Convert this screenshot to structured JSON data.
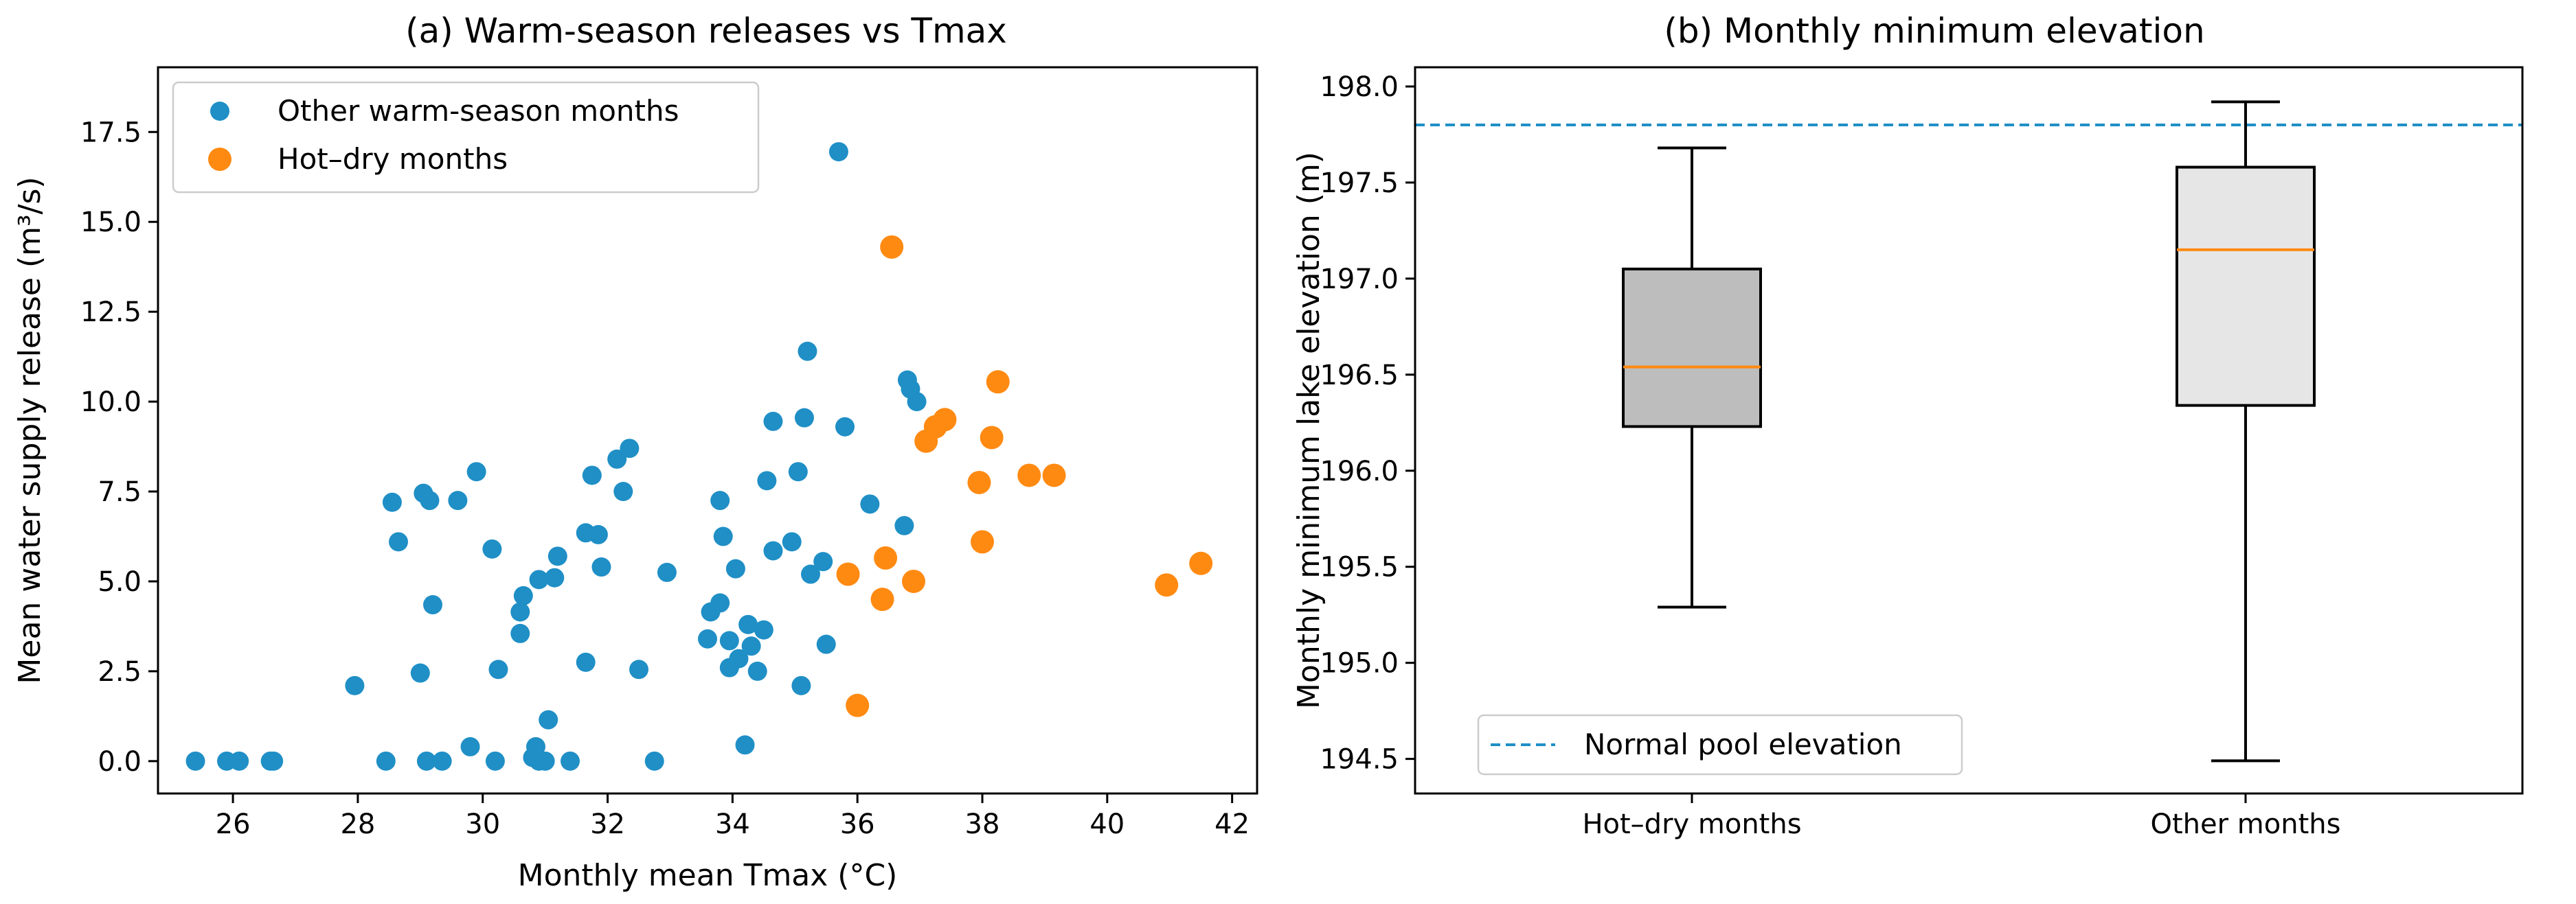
{
  "chart_data": [
    {
      "type": "scatter",
      "title": "(a) Warm-season releases vs Tmax",
      "xlabel": "Monthly mean Tmax (°C)",
      "ylabel": "Mean water supply release (m³/s)",
      "xlim": [
        24.8,
        42.4
      ],
      "ylim": [
        -0.9,
        19.3
      ],
      "xticks": [
        26,
        28,
        30,
        32,
        34,
        36,
        38,
        40,
        42
      ],
      "xtick_labels": [
        "26",
        "28",
        "30",
        "32",
        "34",
        "36",
        "38",
        "40",
        "42"
      ],
      "yticks": [
        0,
        2.5,
        5,
        7.5,
        10,
        12.5,
        15,
        17.5
      ],
      "ytick_labels": [
        "0.0",
        "2.5",
        "5.0",
        "7.5",
        "10.0",
        "12.5",
        "15.0",
        "17.5"
      ],
      "grid": false,
      "legend_position": "top-left",
      "series": [
        {
          "name": "Other warm-season months",
          "color": "#1f8fc6",
          "points": [
            [
              25.4,
              0
            ],
            [
              25.9,
              0
            ],
            [
              26.1,
              0
            ],
            [
              26.6,
              0
            ],
            [
              26.65,
              0
            ],
            [
              27.95,
              2.1
            ],
            [
              28.45,
              0
            ],
            [
              28.55,
              7.2
            ],
            [
              28.65,
              6.1
            ],
            [
              29.0,
              2.45
            ],
            [
              29.05,
              7.45
            ],
            [
              29.1,
              0
            ],
            [
              29.15,
              7.25
            ],
            [
              29.2,
              4.35
            ],
            [
              29.35,
              0
            ],
            [
              29.6,
              7.25
            ],
            [
              29.8,
              0.4
            ],
            [
              29.9,
              8.05
            ],
            [
              30.15,
              5.9
            ],
            [
              30.2,
              0
            ],
            [
              30.25,
              2.55
            ],
            [
              30.6,
              3.55
            ],
            [
              30.6,
              4.15
            ],
            [
              30.65,
              4.6
            ],
            [
              30.8,
              0.1
            ],
            [
              30.85,
              0.4
            ],
            [
              30.9,
              5.05
            ],
            [
              30.9,
              0
            ],
            [
              31.0,
              0
            ],
            [
              31.05,
              1.15
            ],
            [
              31.15,
              5.1
            ],
            [
              31.2,
              5.7
            ],
            [
              31.4,
              0
            ],
            [
              31.65,
              2.75
            ],
            [
              31.65,
              6.35
            ],
            [
              31.75,
              7.95
            ],
            [
              31.85,
              6.3
            ],
            [
              31.9,
              5.4
            ],
            [
              32.15,
              8.4
            ],
            [
              32.25,
              7.5
            ],
            [
              32.35,
              8.7
            ],
            [
              32.5,
              2.55
            ],
            [
              32.75,
              0
            ],
            [
              32.95,
              5.25
            ],
            [
              33.6,
              3.4
            ],
            [
              33.65,
              4.15
            ],
            [
              33.8,
              4.4
            ],
            [
              33.8,
              7.25
            ],
            [
              33.85,
              6.25
            ],
            [
              33.95,
              2.6
            ],
            [
              33.95,
              3.35
            ],
            [
              34.05,
              5.35
            ],
            [
              34.1,
              2.85
            ],
            [
              34.2,
              0.45
            ],
            [
              34.25,
              3.8
            ],
            [
              34.3,
              3.2
            ],
            [
              34.4,
              2.5
            ],
            [
              34.5,
              3.65
            ],
            [
              34.55,
              7.8
            ],
            [
              34.65,
              5.85
            ],
            [
              34.65,
              9.45
            ],
            [
              34.95,
              6.1
            ],
            [
              35.05,
              8.05
            ],
            [
              35.1,
              2.1
            ],
            [
              35.15,
              9.55
            ],
            [
              35.2,
              11.4
            ],
            [
              35.25,
              5.2
            ],
            [
              35.45,
              5.55
            ],
            [
              35.5,
              3.25
            ],
            [
              35.7,
              16.95
            ],
            [
              35.8,
              9.3
            ],
            [
              36.2,
              7.15
            ],
            [
              36.75,
              6.55
            ],
            [
              36.8,
              10.6
            ],
            [
              36.85,
              10.35
            ],
            [
              36.95,
              10.0
            ]
          ]
        },
        {
          "name": "Hot–dry months",
          "color": "#ff8a12",
          "points": [
            [
              35.85,
              5.2
            ],
            [
              36.0,
              1.55
            ],
            [
              36.4,
              4.5
            ],
            [
              36.45,
              5.65
            ],
            [
              36.55,
              14.3
            ],
            [
              36.9,
              5.0
            ],
            [
              37.1,
              8.9
            ],
            [
              37.25,
              9.3
            ],
            [
              37.4,
              9.5
            ],
            [
              37.95,
              7.75
            ],
            [
              38.0,
              6.1
            ],
            [
              38.15,
              9.0
            ],
            [
              38.25,
              10.55
            ],
            [
              38.75,
              7.95
            ],
            [
              39.15,
              7.95
            ],
            [
              40.95,
              4.9
            ],
            [
              41.5,
              5.5
            ]
          ]
        }
      ]
    },
    {
      "type": "box",
      "title": "(b) Monthly minimum elevation",
      "xlabel": "",
      "ylabel": "Monthly minimum lake elevation (m)",
      "ylim": [
        194.32,
        198.1
      ],
      "yticks": [
        194.5,
        195.0,
        195.5,
        196.0,
        196.5,
        197.0,
        197.5,
        198.0
      ],
      "ytick_labels": [
        "194.5",
        "195.0",
        "195.5",
        "196.0",
        "196.5",
        "197.0",
        "197.5",
        "198.0"
      ],
      "categories": [
        "Hot–dry months",
        "Other months"
      ],
      "boxes": [
        {
          "category": "Hot–dry months",
          "fill": "#bdbdbd",
          "whisker_low": 195.29,
          "q1": 196.23,
          "median": 196.54,
          "q3": 197.05,
          "whisker_high": 197.68
        },
        {
          "category": "Other months",
          "fill": "#e6e6e6",
          "whisker_low": 194.49,
          "q1": 196.34,
          "median": 197.15,
          "q3": 197.58,
          "whisker_high": 197.92
        }
      ],
      "median_color": "#ff8a12",
      "reference_line": {
        "name": "Normal pool elevation",
        "value": 197.8,
        "color": "#1f8fc6",
        "style": "dashed"
      },
      "legend_position": "bottom-left",
      "grid": false
    }
  ]
}
